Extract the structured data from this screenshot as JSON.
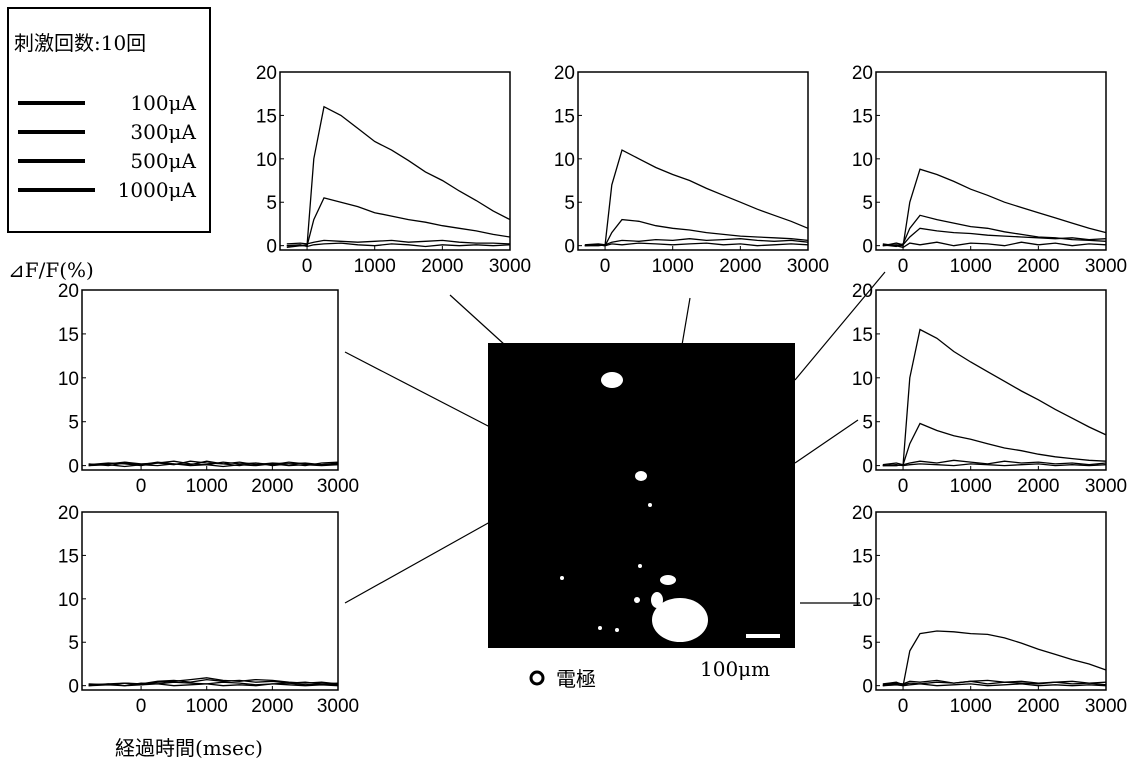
{
  "legend": {
    "title": "刺激回数:10回",
    "items": [
      "100μA",
      "300μA",
      "500μA",
      "1000μA"
    ]
  },
  "axis_labels": {
    "y": "⊿F/F(%)",
    "x": "経過時間(msec)"
  },
  "image": {
    "electrode_label": "電極",
    "scale_label": "100μm"
  },
  "chart_data": [
    {
      "type": "line",
      "x": [
        -300,
        -100,
        0,
        100,
        250,
        500,
        750,
        1000,
        1250,
        1500,
        1750,
        2000,
        2250,
        2500,
        2750,
        3000
      ],
      "xlim": [
        -400,
        3000
      ],
      "ylim": [
        -0.5,
        20
      ],
      "xticks": [
        0,
        1000,
        2000,
        3000
      ],
      "yticks": [
        0,
        5,
        10,
        15,
        20
      ],
      "series": [
        {
          "color": "#000",
          "values": [
            0,
            0.1,
            -0.1,
            0.1,
            0.2,
            0.3,
            0.1,
            0,
            0.2,
            0.1,
            -0.1,
            0.1,
            0,
            0.1,
            0,
            0.1
          ]
        },
        {
          "color": "#000",
          "values": [
            0.2,
            0.3,
            0.2,
            0.4,
            0.6,
            0.5,
            0.4,
            0.5,
            0.6,
            0.4,
            0.5,
            0.6,
            0.4,
            0.3,
            0.3,
            0.2
          ]
        },
        {
          "color": "#000",
          "values": [
            0,
            0,
            0,
            3,
            5.5,
            5,
            4.5,
            3.8,
            3.4,
            3,
            2.7,
            2.3,
            2,
            1.7,
            1.3,
            1
          ]
        },
        {
          "color": "#000",
          "values": [
            -0.2,
            0,
            0.1,
            10,
            16,
            15,
            13.5,
            12,
            11,
            9.8,
            8.5,
            7.5,
            6.3,
            5.2,
            4,
            3
          ]
        }
      ]
    },
    {
      "type": "line",
      "x": [
        -300,
        -100,
        0,
        100,
        250,
        500,
        750,
        1000,
        1250,
        1500,
        1750,
        2000,
        2250,
        2500,
        2750,
        3000
      ],
      "xlim": [
        -400,
        3000
      ],
      "ylim": [
        -0.5,
        20
      ],
      "xticks": [
        0,
        1000,
        2000,
        3000
      ],
      "yticks": [
        0,
        5,
        10,
        15,
        20
      ],
      "series": [
        {
          "color": "#000",
          "values": [
            0,
            0.1,
            0,
            0.2,
            0.1,
            0.3,
            0.2,
            0.1,
            0.2,
            0.3,
            0.1,
            0.2,
            0,
            0.1,
            0.2,
            0.1
          ]
        },
        {
          "color": "#000",
          "values": [
            0.1,
            0.2,
            0.1,
            0.4,
            0.6,
            0.5,
            0.7,
            0.6,
            0.8,
            0.6,
            0.7,
            0.8,
            0.6,
            0.5,
            0.6,
            0.4
          ]
        },
        {
          "color": "#000",
          "values": [
            0,
            0.1,
            0,
            1.5,
            3,
            2.8,
            2.3,
            2,
            1.8,
            1.5,
            1.3,
            1.1,
            1,
            0.9,
            0.8,
            0.6
          ]
        },
        {
          "color": "#000",
          "values": [
            0,
            0,
            0.1,
            7,
            11,
            10,
            9,
            8.2,
            7.5,
            6.6,
            5.8,
            5,
            4.2,
            3.5,
            2.8,
            2
          ]
        }
      ]
    },
    {
      "type": "line",
      "x": [
        -300,
        -100,
        0,
        100,
        250,
        500,
        750,
        1000,
        1250,
        1500,
        1750,
        2000,
        2250,
        2500,
        2750,
        3000
      ],
      "xlim": [
        -400,
        3000
      ],
      "ylim": [
        -0.5,
        20
      ],
      "xticks": [
        0,
        1000,
        2000,
        3000
      ],
      "yticks": [
        0,
        5,
        10,
        15,
        20
      ],
      "series": [
        {
          "color": "#000",
          "values": [
            0.2,
            0,
            -0.2,
            0.3,
            0.1,
            0.4,
            0,
            0.3,
            0.2,
            0,
            0.4,
            0.1,
            0.3,
            0,
            0.2,
            0.1
          ]
        },
        {
          "color": "#000",
          "values": [
            0,
            0.3,
            0.1,
            1,
            2,
            1.7,
            1.5,
            1.4,
            1.2,
            1.1,
            1,
            0.9,
            0.8,
            0.9,
            0.7,
            0.8
          ]
        },
        {
          "color": "#000",
          "values": [
            0.1,
            -0.1,
            0.2,
            2,
            3.5,
            3,
            2.6,
            2.2,
            2,
            1.6,
            1.3,
            1,
            0.9,
            0.7,
            0.6,
            0.5
          ]
        },
        {
          "color": "#000",
          "values": [
            0,
            0.1,
            0,
            5,
            8.8,
            8.2,
            7.4,
            6.5,
            5.8,
            5,
            4.4,
            3.8,
            3.2,
            2.6,
            2,
            1.5
          ]
        }
      ]
    },
    {
      "type": "line",
      "x": [
        -300,
        -100,
        0,
        100,
        250,
        500,
        750,
        1000,
        1250,
        1500,
        1750,
        2000,
        2250,
        2500,
        2750,
        3000
      ],
      "xlim": [
        -400,
        3000
      ],
      "ylim": [
        -0.5,
        20
      ],
      "xticks": [
        0,
        1000,
        2000,
        3000
      ],
      "yticks": [
        0,
        5,
        10,
        15,
        20
      ],
      "series": [
        {
          "color": "#000",
          "values": [
            0,
            0.1,
            0,
            0.1,
            0.2,
            0.1,
            0,
            0.2,
            0.1,
            0,
            0.1,
            0.2,
            0,
            0.1,
            0,
            0.1
          ]
        },
        {
          "color": "#000",
          "values": [
            0.1,
            0.3,
            0.1,
            0.3,
            0.5,
            0.3,
            0.6,
            0.4,
            0.2,
            0.5,
            0.3,
            0.4,
            0.2,
            0.3,
            0.1,
            0.3
          ]
        },
        {
          "color": "#000",
          "values": [
            0,
            0,
            0.1,
            2.5,
            4.8,
            4,
            3.4,
            3,
            2.5,
            2,
            1.7,
            1.3,
            1,
            0.8,
            0.6,
            0.5
          ]
        },
        {
          "color": "#000",
          "values": [
            0,
            0,
            0.1,
            10,
            15.5,
            14.5,
            13,
            11.8,
            10.7,
            9.6,
            8.5,
            7.5,
            6.4,
            5.4,
            4.4,
            3.5
          ]
        }
      ]
    },
    {
      "type": "line",
      "x": [
        -300,
        -100,
        0,
        100,
        250,
        500,
        750,
        1000,
        1250,
        1500,
        1750,
        2000,
        2250,
        2500,
        2750,
        3000
      ],
      "xlim": [
        -400,
        3000
      ],
      "ylim": [
        -0.5,
        20
      ],
      "xticks": [
        0,
        1000,
        2000,
        3000
      ],
      "yticks": [
        0,
        5,
        10,
        15,
        20
      ],
      "series": [
        {
          "color": "#000",
          "values": [
            0,
            0.2,
            0,
            0.1,
            0.2,
            0,
            0.1,
            0.2,
            0,
            0.1,
            0.2,
            0,
            0.1,
            0,
            0.1,
            0
          ]
        },
        {
          "color": "#000",
          "values": [
            0.2,
            0.4,
            0.1,
            0.3,
            0.2,
            0.4,
            0.3,
            0.5,
            0.2,
            0.4,
            0.3,
            0.2,
            0.4,
            0.2,
            0.3,
            0.1
          ]
        },
        {
          "color": "#000",
          "values": [
            0.1,
            0.3,
            0.2,
            0.5,
            0.4,
            0.6,
            0.3,
            0.5,
            0.6,
            0.4,
            0.5,
            0.3,
            0.4,
            0.5,
            0.3,
            0.4
          ]
        },
        {
          "color": "#000",
          "values": [
            0,
            0.1,
            0,
            4,
            6,
            6.3,
            6.2,
            6,
            5.9,
            5.5,
            4.9,
            4.2,
            3.6,
            3,
            2.5,
            1.8
          ]
        }
      ]
    },
    {
      "type": "line",
      "x": [
        -800,
        -500,
        -250,
        0,
        250,
        500,
        750,
        1000,
        1250,
        1500,
        1750,
        2000,
        2250,
        2500,
        2750,
        3000
      ],
      "xlim": [
        -900,
        3000
      ],
      "ylim": [
        -0.5,
        20
      ],
      "xticks": [
        0,
        1000,
        2000,
        3000
      ],
      "yticks": [
        0,
        5,
        10,
        15,
        20
      ],
      "series": [
        {
          "color": "#000",
          "values": [
            0,
            0.1,
            -0.1,
            0.1,
            0,
            0.2,
            0,
            0.1,
            -0.1,
            0.1,
            0,
            0.2,
            0,
            0.1,
            0,
            0.1
          ]
        },
        {
          "color": "#000",
          "values": [
            0.2,
            0,
            0.3,
            0.1,
            0.4,
            0.2,
            0.1,
            0.5,
            0.2,
            0,
            0.3,
            0.1,
            0.4,
            0.2,
            0.1,
            0.3
          ]
        },
        {
          "color": "#000",
          "values": [
            0.1,
            0.3,
            0.2,
            0,
            0.3,
            0.5,
            0.2,
            0.1,
            0.4,
            0.2,
            0.3,
            0,
            0.2,
            0.3,
            0.1,
            0.2
          ]
        },
        {
          "color": "#000",
          "values": [
            0,
            0.2,
            0.4,
            0.2,
            0.3,
            0.1,
            0.5,
            0.3,
            0.2,
            0.4,
            0.1,
            0.3,
            0.2,
            0,
            0.3,
            0.4
          ]
        }
      ]
    },
    {
      "type": "line",
      "x": [
        -800,
        -500,
        -250,
        0,
        250,
        500,
        750,
        1000,
        1250,
        1500,
        1750,
        2000,
        2250,
        2500,
        2750,
        3000
      ],
      "xlim": [
        -900,
        3000
      ],
      "ylim": [
        -0.5,
        20
      ],
      "xticks": [
        0,
        1000,
        2000,
        3000
      ],
      "yticks": [
        0,
        5,
        10,
        15,
        20
      ],
      "series": [
        {
          "color": "#000",
          "values": [
            0,
            0.1,
            0,
            0.1,
            0.2,
            0,
            0.1,
            0.2,
            0,
            0.1,
            0,
            0.2,
            0.1,
            0,
            0.1,
            0
          ]
        },
        {
          "color": "#000",
          "values": [
            0.1,
            0.2,
            0,
            0.3,
            0.2,
            0.4,
            0.3,
            0.2,
            0.4,
            0.3,
            0.1,
            0.2,
            0.3,
            0.1,
            0.2,
            0.1
          ]
        },
        {
          "color": "#000",
          "values": [
            0.2,
            0.1,
            0.3,
            0.2,
            0.5,
            0.6,
            0.4,
            0.7,
            0.5,
            0.6,
            0.4,
            0.5,
            0.3,
            0.4,
            0.2,
            0.3
          ]
        },
        {
          "color": "#000",
          "values": [
            0,
            0.2,
            0.3,
            0.1,
            0.4,
            0.5,
            0.7,
            0.9,
            0.6,
            0.5,
            0.7,
            0.6,
            0.4,
            0.3,
            0.4,
            0.2
          ]
        }
      ]
    }
  ]
}
